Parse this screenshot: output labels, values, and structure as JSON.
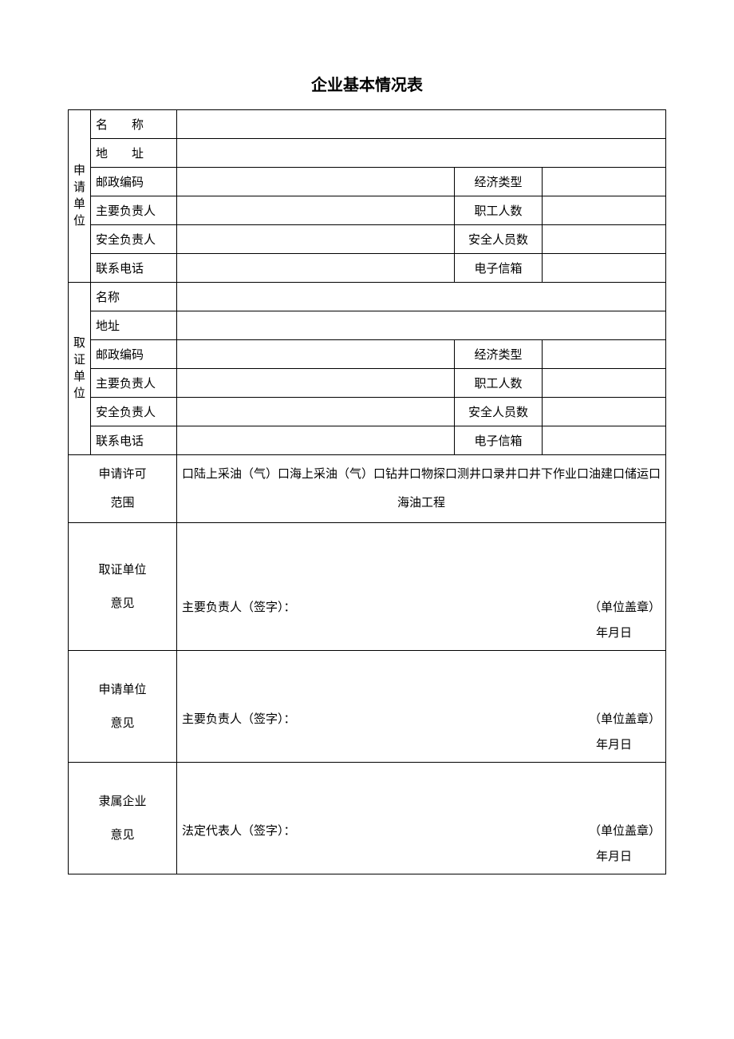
{
  "title": "企业基本情况表",
  "section1": {
    "header": "申请单位",
    "rows": {
      "r1_label": "名　　称",
      "r2_label": "地　　址",
      "r3_label": "邮政编码",
      "r3_mid": "经济类型",
      "r4_label": "主要负责人",
      "r4_mid": "职工人数",
      "r5_label": "安全负责人",
      "r5_mid": "安全人员数",
      "r6_label": "联系电话",
      "r6_mid": "电子信箱"
    }
  },
  "section2": {
    "header": "取证单位",
    "rows": {
      "r1_label": "名称",
      "r2_label": "地址",
      "r3_label": "邮政编码",
      "r3_mid": "经济类型",
      "r4_label": "主要负责人",
      "r4_mid": "职工人数",
      "r5_label": "安全负责人",
      "r5_mid": "安全人员数",
      "r6_label": "联系电话",
      "r6_mid": "电子信箱"
    }
  },
  "scope": {
    "label_l1": "申请许可",
    "label_l2": "范围",
    "content": "口陆上采油（气）口海上采油（气）口钻井口物探口测井口录井口井下作业口油建口储运口海油工程"
  },
  "opinions": {
    "o1_l1": "取证单位",
    "o1_l2": "意见",
    "o1_sig": "主要负责人（签字）：",
    "o2_l1": "申请单位",
    "o2_l2": "意见",
    "o2_sig": "主要负责人（签字）：",
    "o3_l1": "隶属企业",
    "o3_l2": "意见",
    "o3_sig": "法定代表人（签字）："
  },
  "common": {
    "stamp": "（单位盖章）",
    "date": "年月日"
  },
  "values": {
    "s1_name": "",
    "s1_addr": "",
    "s1_zip": "",
    "s1_econ": "",
    "s1_head": "",
    "s1_emp": "",
    "s1_safe": "",
    "s1_safenum": "",
    "s1_tel": "",
    "s1_email": "",
    "s2_name": "",
    "s2_addr": "",
    "s2_zip": "",
    "s2_econ": "",
    "s2_head": "",
    "s2_emp": "",
    "s2_safe": "",
    "s2_safenum": "",
    "s2_tel": "",
    "s2_email": ""
  },
  "style": {
    "border_color": "#000000",
    "background": "#ffffff",
    "font_family": "SimSun",
    "title_fontsize": 20,
    "body_fontsize": 15
  }
}
